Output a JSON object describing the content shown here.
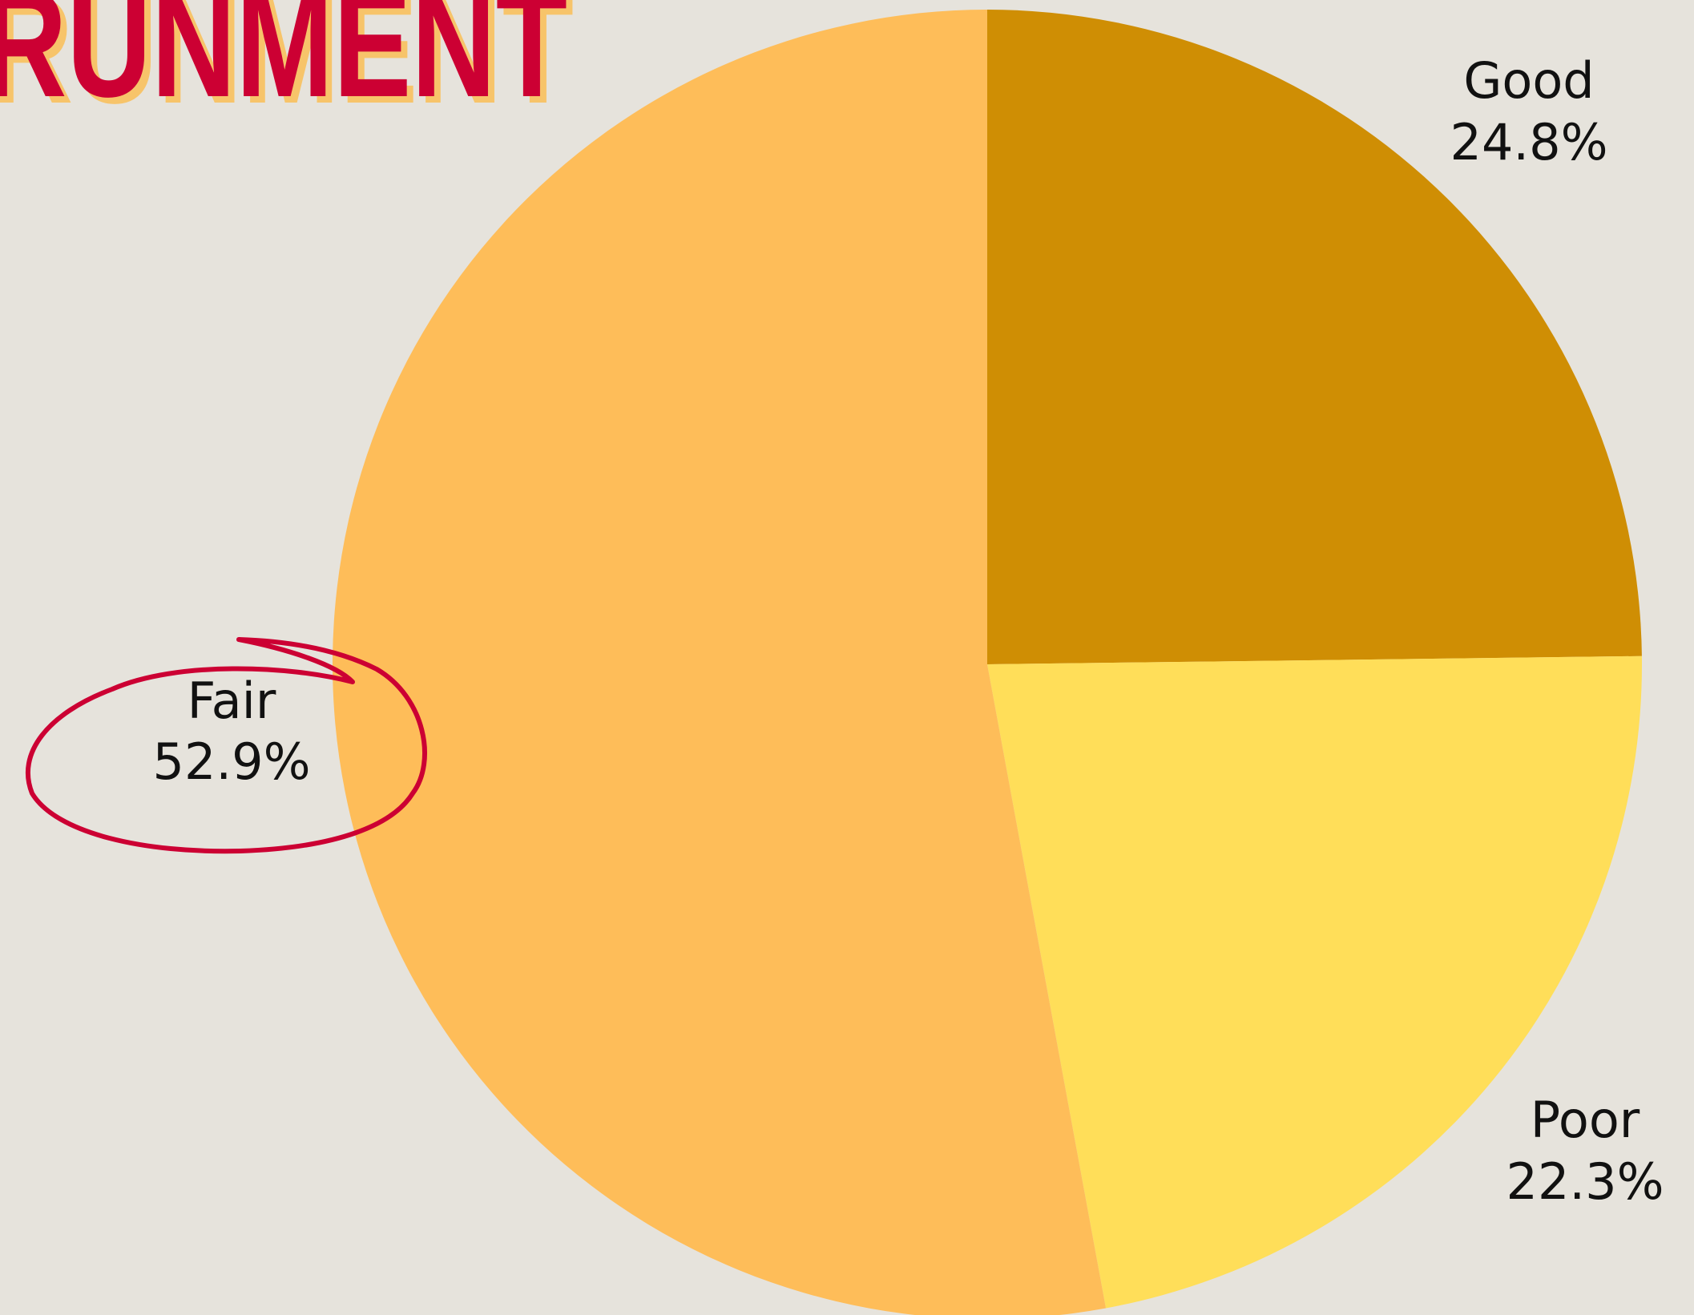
{
  "chart_data": {
    "type": "pie",
    "title": "RUNMENT",
    "categories": [
      "Good",
      "Poor",
      "Fair"
    ],
    "values": [
      24.8,
      22.3,
      52.9
    ],
    "value_labels": [
      "24.8%",
      "22.3%",
      "52.9%"
    ],
    "colors": [
      "#cf8e04",
      "#ffde59",
      "#febd59"
    ],
    "start": "top",
    "direction": "clockwise"
  }
}
